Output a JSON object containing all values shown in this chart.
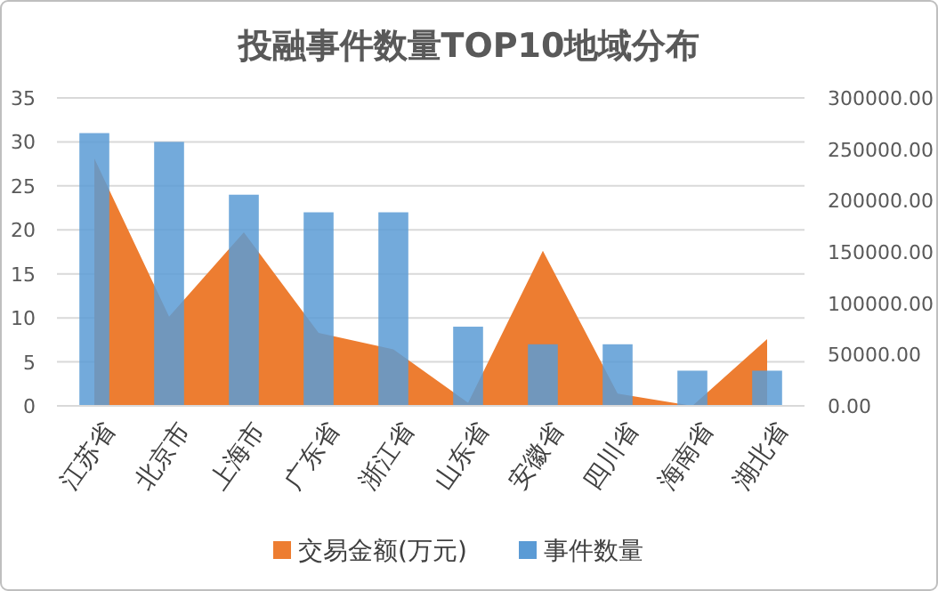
{
  "chart_data": {
    "type": "bar",
    "title": "投融事件数量TOP10地域分布",
    "categories": [
      "江苏省",
      "北京市",
      "上海市",
      "广东省",
      "浙江省",
      "山东省",
      "安徽省",
      "四川省",
      "海南省",
      "湖北省"
    ],
    "series": [
      {
        "name": "交易金额(万元)",
        "type": "area",
        "axis": "y2",
        "color": "#ed7d31",
        "values": [
          241000,
          87000,
          169000,
          71000,
          55000,
          3000,
          151000,
          12000,
          0,
          65000
        ]
      },
      {
        "name": "事件数量",
        "type": "bar",
        "color": "#5b9bd5",
        "values": [
          31,
          30,
          24,
          22,
          22,
          9,
          7,
          7,
          4,
          4
        ]
      }
    ],
    "ylim": [
      0,
      35
    ],
    "yticks": [
      0,
      5,
      10,
      15,
      20,
      25,
      30,
      35
    ],
    "y2lim": [
      0,
      300000
    ],
    "y2ticks": [
      {
        "value": 0,
        "label": "0.00"
      },
      {
        "value": 50000,
        "label": "50000.00"
      },
      {
        "value": 100000,
        "label": "100000.00"
      },
      {
        "value": 150000,
        "label": "150000.00"
      },
      {
        "value": 200000,
        "label": "200000.00"
      },
      {
        "value": 250000,
        "label": "250000.00"
      },
      {
        "value": 300000,
        "label": "300000.00"
      }
    ],
    "grid": "y",
    "legend": "bottom"
  }
}
